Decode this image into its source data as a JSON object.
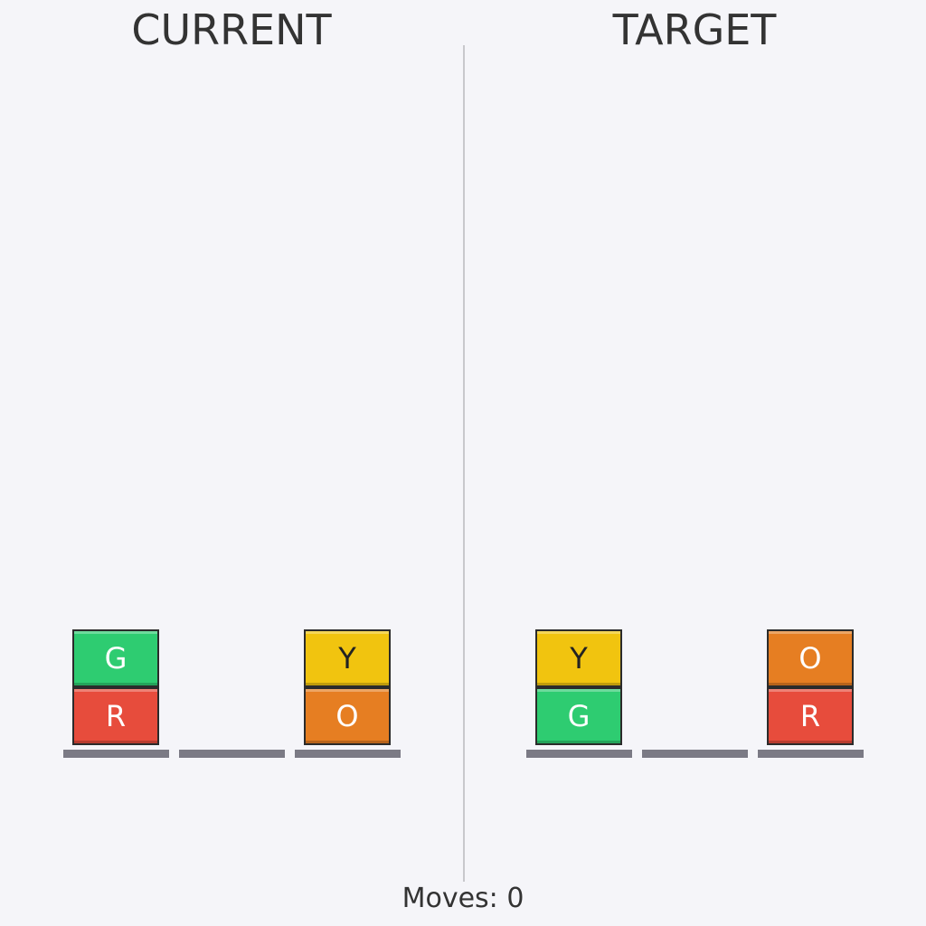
{
  "current": {
    "title": "CURRENT",
    "stacks": [
      [
        "R",
        "G"
      ],
      [],
      [
        "O",
        "Y"
      ]
    ]
  },
  "target": {
    "title": "TARGET",
    "stacks": [
      [
        "G",
        "Y"
      ],
      [],
      [
        "R",
        "O"
      ]
    ]
  },
  "colors": {
    "R": "#e74c3c",
    "G": "#2ecc71",
    "O": "#e67e22",
    "Y": "#f1c40f"
  },
  "text_colors": {
    "R": "#ffffff",
    "G": "#ffffff",
    "O": "#ffffff",
    "Y": "#222222"
  },
  "moves_label": "Moves: 0"
}
